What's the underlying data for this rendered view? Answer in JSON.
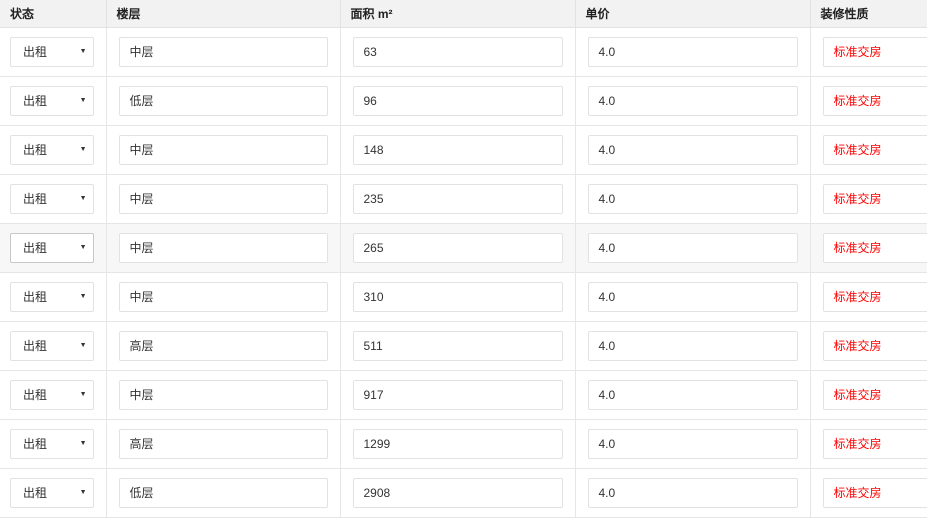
{
  "columns": [
    "状态",
    "楼层",
    "面积 m²",
    "单价",
    "装修性质"
  ],
  "colors": {
    "decoration": "#ff0000",
    "header_bg": "#f2f2f2"
  },
  "rows": [
    {
      "status": "出租",
      "floor": "中层",
      "area": "63",
      "price": "4.0",
      "decoration": "标准交房"
    },
    {
      "status": "出租",
      "floor": "低层",
      "area": "96",
      "price": "4.0",
      "decoration": "标准交房"
    },
    {
      "status": "出租",
      "floor": "中层",
      "area": "148",
      "price": "4.0",
      "decoration": "标准交房"
    },
    {
      "status": "出租",
      "floor": "中层",
      "area": "235",
      "price": "4.0",
      "decoration": "标准交房"
    },
    {
      "status": "出租",
      "floor": "中层",
      "area": "265",
      "price": "4.0",
      "decoration": "标准交房"
    },
    {
      "status": "出租",
      "floor": "中层",
      "area": "310",
      "price": "4.0",
      "decoration": "标准交房"
    },
    {
      "status": "出租",
      "floor": "高层",
      "area": "511",
      "price": "4.0",
      "decoration": "标准交房"
    },
    {
      "status": "出租",
      "floor": "中层",
      "area": "917",
      "price": "4.0",
      "decoration": "标准交房"
    },
    {
      "status": "出租",
      "floor": "高层",
      "area": "1299",
      "price": "4.0",
      "decoration": "标准交房"
    },
    {
      "status": "出租",
      "floor": "低层",
      "area": "2908",
      "price": "4.0",
      "decoration": "标准交房"
    }
  ]
}
